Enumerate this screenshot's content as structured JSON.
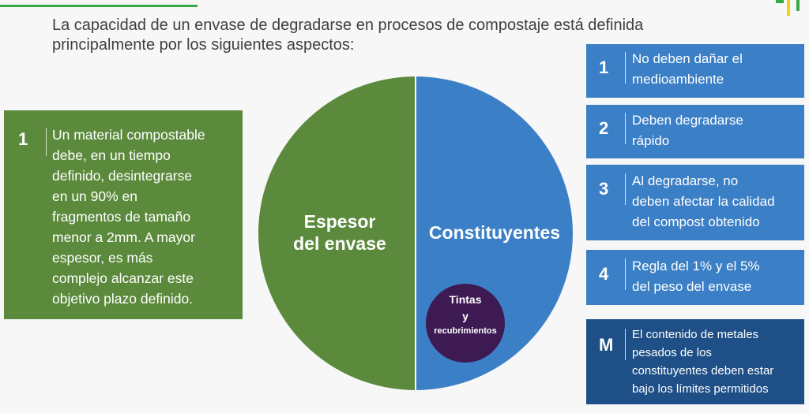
{
  "heading": {
    "line1": "La capacidad de un envase de degradarse en procesos de compostaje está definida",
    "line2": "principalmente por  los siguientes aspectos:"
  },
  "left_box": {
    "number": "1",
    "lines": [
      "Un material compostable",
      "debe, en un tiempo",
      "definido, desintegrarse",
      "en un 90% en",
      "fragmentos de tamaño",
      "menor a 2mm. A mayor",
      "espesor, es más",
      "complejo alcanzar este",
      "objetivo plazo definido."
    ]
  },
  "circle": {
    "left_label": [
      "Espesor",
      "del envase"
    ],
    "right_label": "Constituyentes",
    "inner": {
      "line1": "Tintas",
      "line2": "y",
      "line3": "recubrimientos"
    }
  },
  "right_boxes": [
    {
      "number": "1",
      "lines": [
        "No deben dañar el",
        "medioambiente"
      ]
    },
    {
      "number": "2",
      "lines": [
        "Deben degradarse",
        "rápido"
      ]
    },
    {
      "number": "3",
      "lines": [
        "Al degradarse, no",
        "deben afectar la calidad",
        "del compost obtenido"
      ]
    },
    {
      "number": "4",
      "lines": [
        "Regla del 1% y el 5%",
        "del peso del envase"
      ]
    },
    {
      "number": "M",
      "lines": [
        "El contenido de metales",
        "pesados de los",
        "constituyentes deben estar",
        "bajo los límites permitidos"
      ]
    }
  ],
  "colors": {
    "green": "#5b8a3c",
    "blue": "#3b7fc6",
    "dark_blue": "#1e4f86",
    "purple": "#3d1a52",
    "accent_green": "#3aa845",
    "accent_yellow": "#f2d500"
  }
}
